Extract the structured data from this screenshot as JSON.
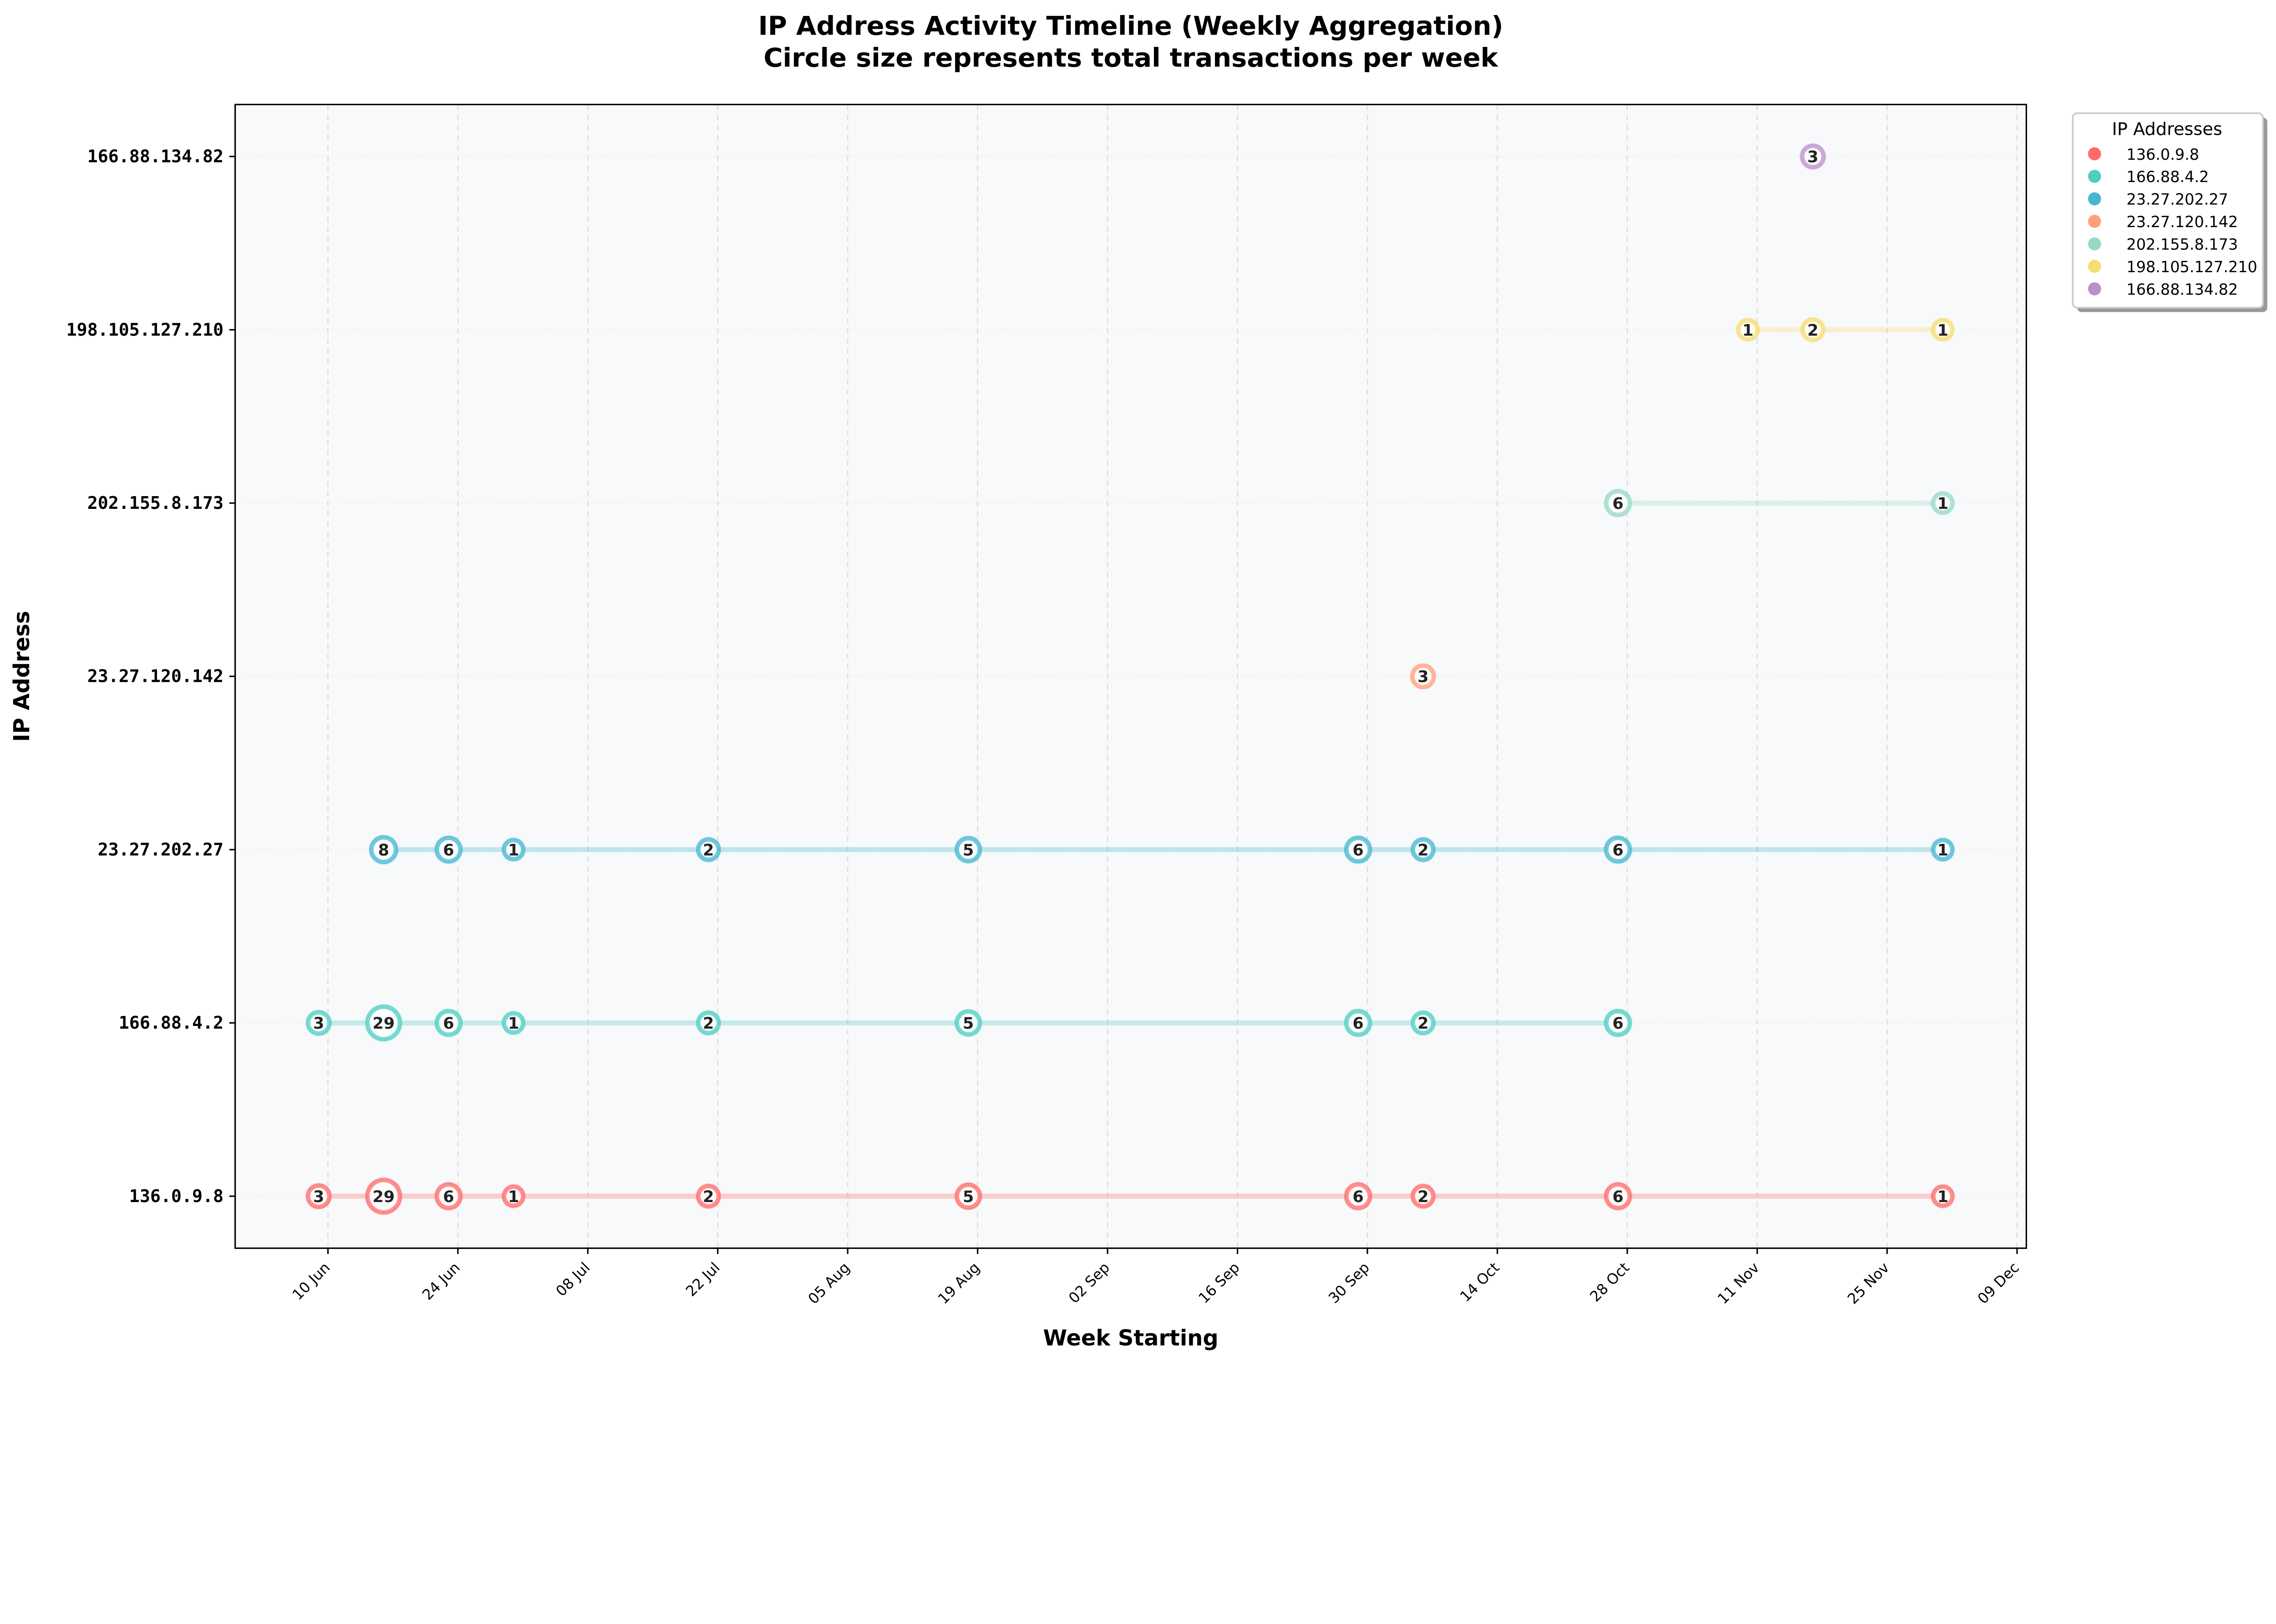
{
  "chart_data": {
    "type": "scatter",
    "title": "IP Address Activity Timeline (Weekly Aggregation)",
    "subtitle": "Circle size represents total transactions per week",
    "xlabel": "Week Starting",
    "ylabel": "IP Address",
    "xlim": [
      "2024-05-31",
      "2024-12-10"
    ],
    "x_ticks": [
      {
        "date": "2024-06-10",
        "label": "10 Jun"
      },
      {
        "date": "2024-06-24",
        "label": "24 Jun"
      },
      {
        "date": "2024-07-08",
        "label": "08 Jul"
      },
      {
        "date": "2024-07-22",
        "label": "22 Jul"
      },
      {
        "date": "2024-08-05",
        "label": "05 Aug"
      },
      {
        "date": "2024-08-19",
        "label": "19 Aug"
      },
      {
        "date": "2024-09-02",
        "label": "02 Sep"
      },
      {
        "date": "2024-09-16",
        "label": "16 Sep"
      },
      {
        "date": "2024-09-30",
        "label": "30 Sep"
      },
      {
        "date": "2024-10-14",
        "label": "14 Oct"
      },
      {
        "date": "2024-10-28",
        "label": "28 Oct"
      },
      {
        "date": "2024-11-11",
        "label": "11 Nov"
      },
      {
        "date": "2024-11-25",
        "label": "25 Nov"
      },
      {
        "date": "2024-12-09",
        "label": "09 Dec"
      }
    ],
    "categories": [
      "136.0.9.8",
      "166.88.4.2",
      "23.27.202.27",
      "23.27.120.142",
      "202.155.8.173",
      "198.105.127.210",
      "166.88.134.82"
    ],
    "grid": "vertical dashed",
    "legend": {
      "title": "IP Addresses",
      "placement": "outside-top-right"
    },
    "background_color": "#F8F9FA",
    "series": [
      {
        "name": "136.0.9.8",
        "color": "#FF6B6B",
        "points": [
          {
            "x": "2024-06-09",
            "value": 3
          },
          {
            "x": "2024-06-16",
            "value": 29
          },
          {
            "x": "2024-06-23",
            "value": 6
          },
          {
            "x": "2024-06-30",
            "value": 1
          },
          {
            "x": "2024-07-21",
            "value": 2
          },
          {
            "x": "2024-08-18",
            "value": 5
          },
          {
            "x": "2024-09-29",
            "value": 6
          },
          {
            "x": "2024-10-06",
            "value": 2
          },
          {
            "x": "2024-10-27",
            "value": 6
          },
          {
            "x": "2024-12-01",
            "value": 1
          }
        ]
      },
      {
        "name": "166.88.4.2",
        "color": "#4ECDC4",
        "points": [
          {
            "x": "2024-06-09",
            "value": 3
          },
          {
            "x": "2024-06-16",
            "value": 29
          },
          {
            "x": "2024-06-23",
            "value": 6
          },
          {
            "x": "2024-06-30",
            "value": 1
          },
          {
            "x": "2024-07-21",
            "value": 2
          },
          {
            "x": "2024-08-18",
            "value": 5
          },
          {
            "x": "2024-09-29",
            "value": 6
          },
          {
            "x": "2024-10-06",
            "value": 2
          },
          {
            "x": "2024-10-27",
            "value": 6
          }
        ]
      },
      {
        "name": "23.27.202.27",
        "color": "#45B7D1",
        "points": [
          {
            "x": "2024-06-16",
            "value": 8
          },
          {
            "x": "2024-06-23",
            "value": 6
          },
          {
            "x": "2024-06-30",
            "value": 1
          },
          {
            "x": "2024-07-21",
            "value": 2
          },
          {
            "x": "2024-08-18",
            "value": 5
          },
          {
            "x": "2024-09-29",
            "value": 6
          },
          {
            "x": "2024-10-06",
            "value": 2
          },
          {
            "x": "2024-10-27",
            "value": 6
          },
          {
            "x": "2024-12-01",
            "value": 1
          }
        ]
      },
      {
        "name": "23.27.120.142",
        "color": "#FFA07A",
        "points": [
          {
            "x": "2024-10-06",
            "value": 3
          }
        ]
      },
      {
        "name": "202.155.8.173",
        "color": "#98D8C8",
        "points": [
          {
            "x": "2024-10-27",
            "value": 6
          },
          {
            "x": "2024-12-01",
            "value": 1
          }
        ]
      },
      {
        "name": "198.105.127.210",
        "color": "#F7DC6F",
        "points": [
          {
            "x": "2024-11-10",
            "value": 1
          },
          {
            "x": "2024-11-17",
            "value": 2
          },
          {
            "x": "2024-12-01",
            "value": 1
          }
        ]
      },
      {
        "name": "166.88.134.82",
        "color": "#BB8FCE",
        "points": [
          {
            "x": "2024-11-17",
            "value": 3
          }
        ]
      }
    ]
  }
}
